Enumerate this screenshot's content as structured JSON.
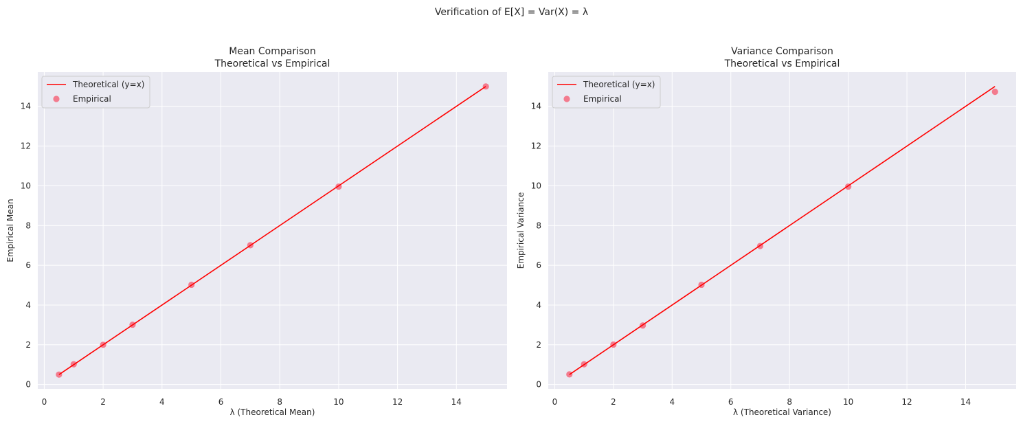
{
  "figure": {
    "suptitle": "Verification of E[X] = Var(X) = λ"
  },
  "chart_data": [
    {
      "type": "scatter",
      "title": "Mean Comparison",
      "subtitle": "Theoretical vs Empirical",
      "xlabel": "λ (Theoretical Mean)",
      "ylabel": "Empirical Mean",
      "xlim": [
        -0.22,
        15.72
      ],
      "ylim": [
        -0.22,
        15.72
      ],
      "xticks": [
        0,
        2,
        4,
        6,
        8,
        10,
        12,
        14
      ],
      "yticks": [
        0,
        2,
        4,
        6,
        8,
        10,
        12,
        14
      ],
      "grid": true,
      "legend_position": "top-left",
      "series": [
        {
          "name": "Theoretical (y=x)",
          "kind": "line",
          "color": "#ff0000",
          "x": [
            0.5,
            15
          ],
          "y": [
            0.5,
            15
          ]
        },
        {
          "name": "Empirical",
          "kind": "scatter",
          "color": "#f4677c",
          "x": [
            0.5,
            1,
            2,
            3,
            5,
            7,
            10,
            15
          ],
          "y": [
            0.5,
            1.02,
            2.0,
            3.01,
            5.02,
            7.01,
            9.96,
            15.0
          ]
        }
      ]
    },
    {
      "type": "scatter",
      "title": "Variance Comparison",
      "subtitle": "Theoretical vs Empirical",
      "xlabel": "λ (Theoretical Variance)",
      "ylabel": "Empirical Variance",
      "xlim": [
        -0.22,
        15.72
      ],
      "ylim": [
        -0.22,
        15.72
      ],
      "xticks": [
        0,
        2,
        4,
        6,
        8,
        10,
        12,
        14
      ],
      "yticks": [
        0,
        2,
        4,
        6,
        8,
        10,
        12,
        14
      ],
      "grid": true,
      "legend_position": "top-left",
      "series": [
        {
          "name": "Theoretical (y=x)",
          "kind": "line",
          "color": "#ff0000",
          "x": [
            0.5,
            15
          ],
          "y": [
            0.5,
            15
          ]
        },
        {
          "name": "Empirical",
          "kind": "scatter",
          "color": "#f4677c",
          "x": [
            0.5,
            1,
            2,
            3,
            5,
            7,
            10,
            15
          ],
          "y": [
            0.51,
            1.02,
            2.01,
            2.97,
            5.02,
            6.97,
            9.96,
            14.73
          ]
        }
      ]
    }
  ]
}
